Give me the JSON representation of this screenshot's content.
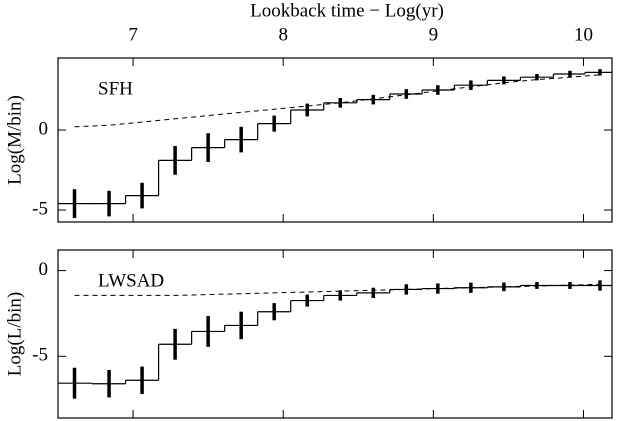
{
  "chart_data": [
    {
      "type": "step",
      "xlabel": "Lookback time − Log(yr)",
      "ylabel": "Log(M/bin)",
      "label": "SFH",
      "xlim": [
        6.5,
        10.19
      ],
      "xticks": [
        7,
        8,
        9,
        10
      ],
      "ylim": [
        -5.75,
        4.5
      ],
      "yticks": [
        -5,
        0
      ],
      "x": [
        6.61,
        6.84,
        7.06,
        7.28,
        7.5,
        7.72,
        7.94,
        8.16,
        8.38,
        8.6,
        8.82,
        9.03,
        9.25,
        9.47,
        9.69,
        9.91,
        10.11
      ],
      "values": [
        -4.6,
        -4.6,
        -4.1,
        -1.9,
        -1.1,
        -0.6,
        0.4,
        1.25,
        1.7,
        1.9,
        2.25,
        2.5,
        2.8,
        3.1,
        3.3,
        3.5,
        3.6
      ],
      "errors": [
        0.9,
        0.8,
        0.8,
        0.9,
        0.9,
        0.8,
        0.5,
        0.4,
        0.3,
        0.3,
        0.3,
        0.3,
        0.3,
        0.25,
        0.2,
        0.2,
        0.2
      ],
      "dashed_values": [
        0.2,
        0.3,
        0.5,
        0.7,
        0.9,
        1.1,
        1.3,
        1.5,
        1.7,
        1.95,
        2.2,
        2.45,
        2.7,
        2.95,
        3.15,
        3.3,
        3.45
      ]
    },
    {
      "type": "step",
      "ylabel": "Log(L/bin)",
      "label": "LWSAD",
      "xlim": [
        6.5,
        10.19
      ],
      "xticks": [
        7,
        8,
        9,
        10
      ],
      "ylim": [
        -8.6,
        1.2
      ],
      "yticks": [
        -5,
        0
      ],
      "x": [
        6.61,
        6.84,
        7.06,
        7.28,
        7.5,
        7.72,
        7.94,
        8.16,
        8.38,
        8.6,
        8.82,
        9.03,
        9.25,
        9.47,
        9.69,
        9.91,
        10.11
      ],
      "values": [
        -6.57,
        -6.6,
        -6.4,
        -4.3,
        -3.55,
        -3.2,
        -2.4,
        -1.75,
        -1.45,
        -1.3,
        -1.1,
        -1.05,
        -1.0,
        -0.95,
        -0.87,
        -0.87,
        -0.87
      ],
      "errors": [
        0.9,
        0.8,
        0.8,
        0.9,
        0.9,
        0.8,
        0.5,
        0.35,
        0.3,
        0.3,
        0.3,
        0.3,
        0.3,
        0.25,
        0.2,
        0.2,
        0.3
      ],
      "dashed_values": [
        -1.45,
        -1.45,
        -1.45,
        -1.45,
        -1.4,
        -1.35,
        -1.3,
        -1.25,
        -1.2,
        -1.15,
        -1.1,
        -1.05,
        -1.0,
        -0.95,
        -0.9,
        -0.85,
        -0.8
      ]
    }
  ]
}
